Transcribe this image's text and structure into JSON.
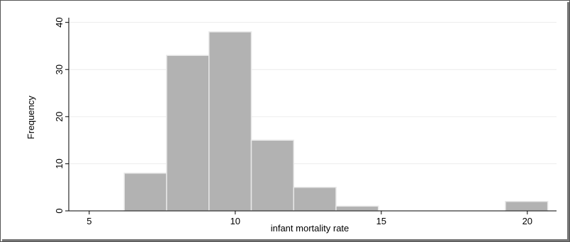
{
  "chart_data": {
    "type": "bar",
    "subtype": "histogram",
    "xlabel": "infant mortality rate",
    "ylabel": "Frequency",
    "xlim": [
      4.3,
      21
    ],
    "ylim": [
      0,
      41
    ],
    "xticks": [
      5,
      10,
      15,
      20
    ],
    "yticks": [
      0,
      10,
      20,
      30,
      40
    ],
    "bins": [
      {
        "x0": 6.2,
        "x1": 7.65,
        "count": 8
      },
      {
        "x0": 7.65,
        "x1": 9.1,
        "count": 33
      },
      {
        "x0": 9.1,
        "x1": 10.55,
        "count": 38
      },
      {
        "x0": 10.55,
        "x1": 12.0,
        "count": 15
      },
      {
        "x0": 12.0,
        "x1": 13.45,
        "count": 5
      },
      {
        "x0": 13.45,
        "x1": 14.9,
        "count": 1
      },
      {
        "x0": 19.25,
        "x1": 20.7,
        "count": 2
      }
    ],
    "grid": "horizontal",
    "legend": "none",
    "colors": {
      "bar_fill": "#b2b2b2",
      "bar_edge": "#e8e8e8",
      "gridline": "#ececec",
      "axis": "#000000",
      "frame": "#555555"
    }
  }
}
